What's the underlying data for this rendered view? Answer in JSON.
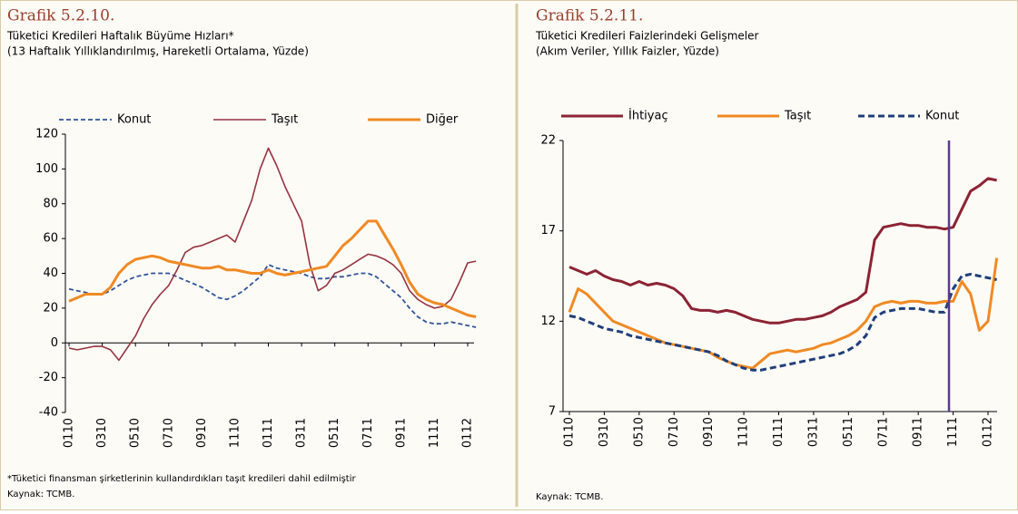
{
  "chart_data": [
    {
      "type": "line",
      "title": "Grafik 5.2.10.",
      "subtitle": "Tüketici Kredileri Haftalık Büyüme Hızları*",
      "subtitle2": "(13 Haftalık Yıllıklandırılmış, Hareketli Ortalama, Yüzde)",
      "footnote": "*Tüketici finansman şirketlerinin kullandırdıkları taşıt kredileri dahil edilmiştir",
      "source": "Kaynak: TCMB.",
      "legend": "top",
      "categories": [
        "0110",
        null,
        null,
        null,
        "0310",
        null,
        null,
        null,
        "0510",
        null,
        null,
        null,
        "0710",
        null,
        null,
        null,
        "0910",
        null,
        null,
        null,
        "1110",
        null,
        null,
        null,
        "0111",
        null,
        null,
        null,
        "0311",
        null,
        null,
        null,
        "0511",
        null,
        null,
        null,
        "0711",
        null,
        null,
        null,
        "0911",
        null,
        null,
        null,
        "1111",
        null,
        null,
        null,
        "0112",
        null
      ],
      "ylim": [
        -40,
        120
      ],
      "yticks": [
        -40,
        -20,
        0,
        20,
        40,
        60,
        80,
        100,
        120
      ],
      "series": [
        {
          "name": "Konut",
          "color": "#2f5597",
          "style": "dashed",
          "values": [
            31,
            30,
            29,
            28,
            28,
            30,
            33,
            36,
            38,
            39,
            40,
            40,
            40,
            38,
            36,
            34,
            32,
            29,
            26,
            25,
            27,
            30,
            34,
            38,
            45,
            43,
            42,
            41,
            40,
            38,
            37,
            37,
            38,
            38,
            39,
            40,
            40,
            38,
            34,
            30,
            26,
            20,
            15,
            12,
            11,
            11,
            12,
            11,
            10,
            9
          ]
        },
        {
          "name": "Taşıt",
          "color": "#953440",
          "style": "thin",
          "values": [
            -3,
            -4,
            -3,
            -2,
            -2,
            -4,
            -10,
            -3,
            4,
            14,
            22,
            28,
            33,
            42,
            52,
            55,
            56,
            58,
            60,
            62,
            58,
            70,
            82,
            100,
            112,
            102,
            90,
            80,
            70,
            45,
            30,
            33,
            40,
            42,
            45,
            48,
            51,
            50,
            48,
            45,
            40,
            30,
            25,
            22,
            20,
            21,
            25,
            35,
            46,
            47
          ]
        },
        {
          "name": "Diğer",
          "color": "#f08a24",
          "style": "thick",
          "values": [
            24,
            26,
            28,
            28,
            28,
            32,
            40,
            45,
            48,
            49,
            50,
            49,
            47,
            46,
            45,
            44,
            43,
            43,
            44,
            42,
            42,
            41,
            40,
            40,
            42,
            40,
            39,
            40,
            41,
            42,
            43,
            44,
            50,
            56,
            60,
            65,
            70,
            70,
            62,
            54,
            45,
            35,
            28,
            25,
            23,
            22,
            20,
            18,
            16,
            15
          ]
        }
      ]
    },
    {
      "type": "line",
      "title": "Grafik 5.2.11.",
      "subtitle": "Tüketici Kredileri Faizlerindeki Gelişmeler",
      "subtitle2": "(Akım Veriler, Yıllık Faizler, Yüzde)",
      "source": "Kaynak: TCMB.",
      "legend": "top",
      "categories": [
        "0110",
        null,
        null,
        null,
        "0310",
        null,
        null,
        null,
        "0510",
        null,
        null,
        null,
        "0710",
        null,
        null,
        null,
        "0910",
        null,
        null,
        null,
        "1110",
        null,
        null,
        null,
        "0111",
        null,
        null,
        null,
        "0311",
        null,
        null,
        null,
        "0511",
        null,
        null,
        null,
        "0711",
        null,
        null,
        null,
        "0911",
        null,
        null,
        null,
        "1111",
        null,
        null,
        null,
        "0112",
        null
      ],
      "ylim": [
        7,
        22
      ],
      "yticks": [
        7,
        12,
        17,
        22
      ],
      "series": [
        {
          "name": "İhtiyaç",
          "color": "#8c2333",
          "style": "thick",
          "values": [
            15,
            14.8,
            14.6,
            14.8,
            14.5,
            14.3,
            14.2,
            14.0,
            14.2,
            14.0,
            14.1,
            14.0,
            13.8,
            13.4,
            12.7,
            12.6,
            12.6,
            12.5,
            12.6,
            12.5,
            12.3,
            12.1,
            12.0,
            11.9,
            11.9,
            12.0,
            12.1,
            12.1,
            12.2,
            12.3,
            12.5,
            12.8,
            13.0,
            13.2,
            13.6,
            16.5,
            17.2,
            17.3,
            17.4,
            17.3,
            17.3,
            17.2,
            17.2,
            17.1,
            17.2,
            18.2,
            19.2,
            19.5,
            19.9,
            19.8
          ]
        },
        {
          "name": "Taşıt",
          "color": "#f08a24",
          "style": "thick",
          "values": [
            12.5,
            13.8,
            13.5,
            13.0,
            12.5,
            12.0,
            11.8,
            11.6,
            11.4,
            11.2,
            11.0,
            10.8,
            10.7,
            10.6,
            10.5,
            10.4,
            10.3,
            10.0,
            9.8,
            9.6,
            9.5,
            9.4,
            9.8,
            10.2,
            10.3,
            10.4,
            10.3,
            10.4,
            10.5,
            10.7,
            10.8,
            11.0,
            11.2,
            11.5,
            12.0,
            12.8,
            13.0,
            13.1,
            13.0,
            13.1,
            13.1,
            13.0,
            13.0,
            13.1,
            13.1,
            14.2,
            13.5,
            11.5,
            12.0,
            15.5
          ]
        },
        {
          "name": "Konut",
          "color": "#1f3f7a",
          "style": "dashed-thick",
          "values": [
            12.3,
            12.2,
            12.0,
            11.8,
            11.6,
            11.5,
            11.4,
            11.2,
            11.1,
            11.0,
            10.9,
            10.8,
            10.7,
            10.6,
            10.5,
            10.4,
            10.3,
            10.1,
            9.8,
            9.6,
            9.4,
            9.3,
            9.3,
            9.4,
            9.5,
            9.6,
            9.7,
            9.8,
            9.9,
            10.0,
            10.1,
            10.2,
            10.4,
            10.7,
            11.2,
            12.2,
            12.5,
            12.6,
            12.7,
            12.7,
            12.7,
            12.6,
            12.5,
            12.5,
            13.8,
            14.5,
            14.6,
            14.5,
            14.4,
            14.3
          ]
        }
      ]
    }
  ]
}
